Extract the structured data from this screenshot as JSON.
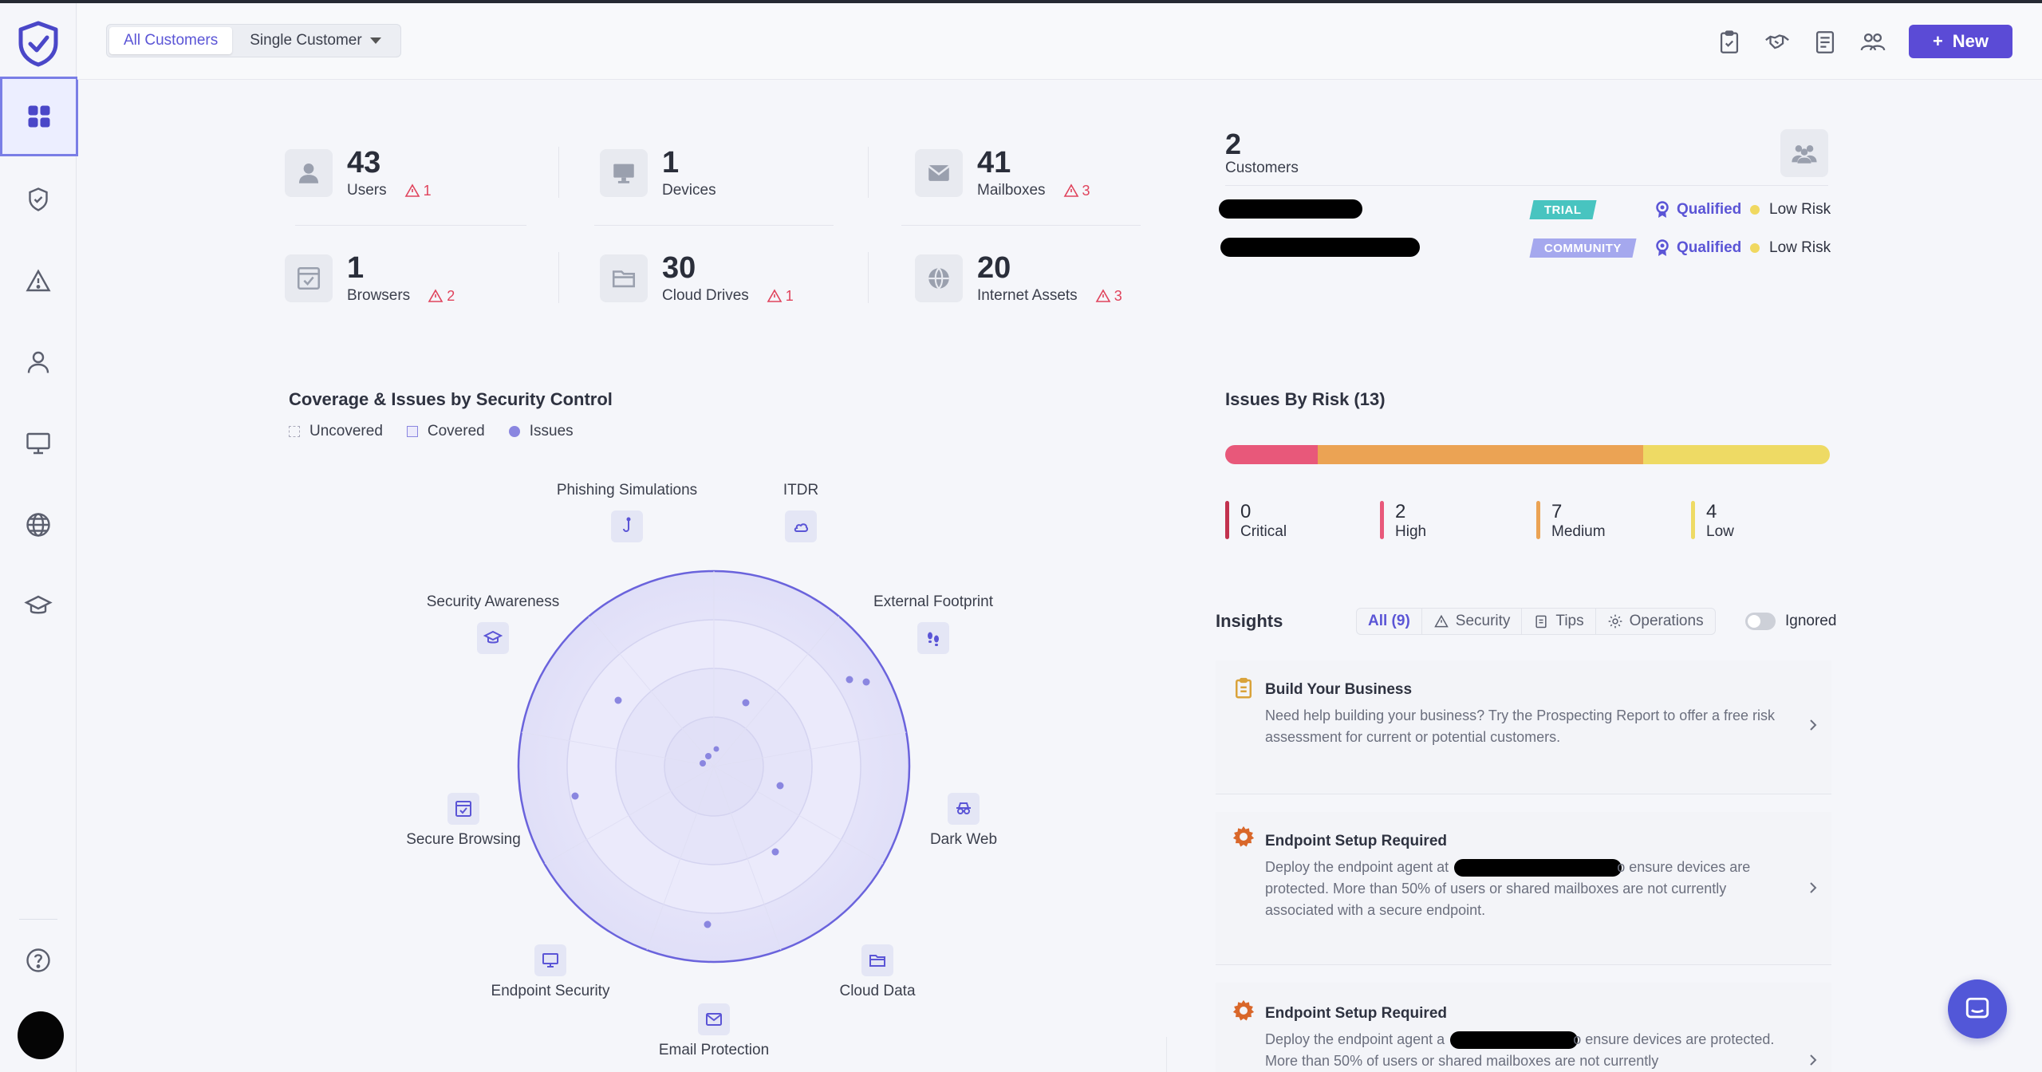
{
  "header": {
    "segments": [
      "All Customers",
      "Single Customer"
    ],
    "new_label": "New"
  },
  "sidebar": {
    "items": [
      "dashboard",
      "security",
      "alerts",
      "users",
      "devices",
      "internet",
      "training"
    ]
  },
  "stats": [
    {
      "num": "43",
      "label": "Users",
      "warn": "1"
    },
    {
      "num": "1",
      "label": "Devices",
      "warn": ""
    },
    {
      "num": "41",
      "label": "Mailboxes",
      "warn": "3"
    },
    {
      "num": "1",
      "label": "Browsers",
      "warn": "2"
    },
    {
      "num": "30",
      "label": "Cloud Drives",
      "warn": "1"
    },
    {
      "num": "20",
      "label": "Internet Assets",
      "warn": "3"
    }
  ],
  "customers": {
    "count": "2",
    "label": "Customers",
    "rows": [
      {
        "badge": "TRIAL",
        "badge_color": "#48c4c0",
        "status": "Qualified",
        "risk": "Low Risk"
      },
      {
        "badge": "COMMUNITY",
        "badge_color": "#a5a8ee",
        "status": "Qualified",
        "risk": "Low Risk"
      }
    ]
  },
  "coverage": {
    "title": "Coverage & Issues by Security Control",
    "legend": [
      "Uncovered",
      "Covered",
      "Issues"
    ],
    "controls": [
      "Phishing Simulations",
      "ITDR",
      "External Footprint",
      "Dark Web",
      "Cloud Data",
      "Email Protection",
      "Endpoint Security",
      "Secure Browsing",
      "Security Awareness"
    ]
  },
  "issues": {
    "title": "Issues By Risk (13)",
    "levels": [
      {
        "num": "0",
        "label": "Critical",
        "color": "#c2324e"
      },
      {
        "num": "2",
        "label": "High",
        "color": "#e8587a"
      },
      {
        "num": "7",
        "label": "Medium",
        "color": "#eba354"
      },
      {
        "num": "4",
        "label": "Low",
        "color": "#eeda64"
      }
    ]
  },
  "insights": {
    "title": "Insights",
    "tabs": [
      "All (9)",
      "Security",
      "Tips",
      "Operations"
    ],
    "ignored_label": "Ignored",
    "cards": [
      {
        "title": "Build Your Business",
        "text": "Need help building your business? Try the Prospecting Report to offer a free risk assessment for current or potential customers."
      },
      {
        "title": "Endpoint Setup Required",
        "text_a": "Deploy the endpoint agent at",
        "text_b": "o ensure devices are protected. More than 50% of users or shared mailboxes are not currently associated with a secure endpoint."
      },
      {
        "title": "Endpoint Setup Required",
        "text_a": "Deploy the endpoint agent a",
        "text_b": "o ensure devices are protected. More than 50% of users or shared mailboxes are not currently"
      }
    ]
  }
}
